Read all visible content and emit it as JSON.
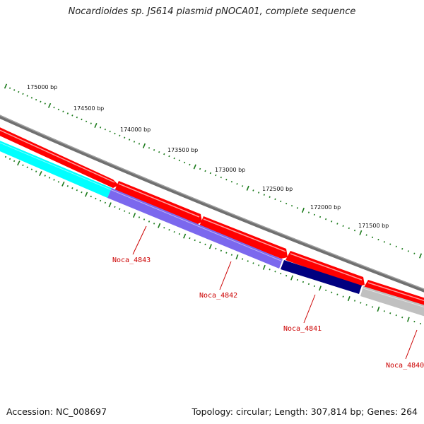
{
  "title": "Nocardioides sp. JS614 plasmid pNOCA01, complete sequence",
  "footer": {
    "accession": "Accession: NC_008697",
    "summary": "Topology: circular; Length: 307,814 bp; Genes: 264"
  },
  "colors": {
    "backbone": "#808080",
    "forward_gene": "#ff0000",
    "reverse_gene_cyan": "#00ffff",
    "reverse_gene_slate": "#7b68ee",
    "reverse_gene_navy": "#000080",
    "reverse_gene_gray": "#c0c0c0",
    "tick": "#1a7a1a",
    "label": "#cc0000"
  },
  "ticks": [
    {
      "label": "175000 bp"
    },
    {
      "label": "174500 bp"
    },
    {
      "label": "174000 bp"
    },
    {
      "label": "173500 bp"
    },
    {
      "label": "173000 bp"
    },
    {
      "label": "172500 bp"
    },
    {
      "label": "172000 bp"
    },
    {
      "label": "171500 bp"
    }
  ],
  "genes": [
    {
      "name": "Noca_4843"
    },
    {
      "name": "Noca_4842"
    },
    {
      "name": "Noca_4841"
    },
    {
      "name": "Noca_4840"
    }
  ]
}
